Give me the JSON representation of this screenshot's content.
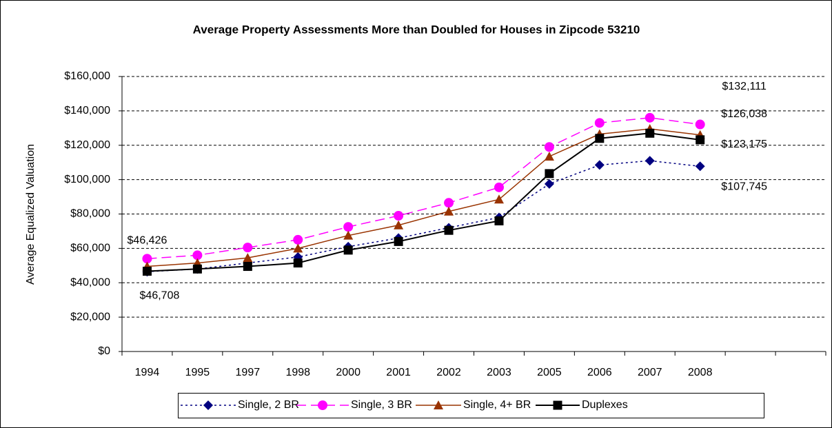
{
  "chart_data": {
    "type": "line",
    "title": "Average Property Assessments More than Doubled for Houses in Zipcode 53210",
    "y_label": "Average Equalized Valuation",
    "categories": [
      "1994",
      "1995",
      "1997",
      "1998",
      "2000",
      "2001",
      "2002",
      "2003",
      "2005",
      "2006",
      "2007",
      "2008",
      null,
      null
    ],
    "series": [
      {
        "name": "Single, 2 BR",
        "color": "#000080",
        "marker": "diamond",
        "dash": "dotted",
        "values": [
          46426,
          48000,
          51500,
          55000,
          61000,
          66000,
          72000,
          78000,
          97500,
          108500,
          111000,
          107745,
          null,
          null
        ],
        "value_labels": [
          "$46,426",
          null,
          null,
          null,
          null,
          null,
          null,
          null,
          null,
          null,
          null,
          "$107,745",
          null,
          null
        ]
      },
      {
        "name": "Single, 3 BR",
        "color": "#ff00ff",
        "marker": "circle",
        "dash": "dashed",
        "values": [
          54000,
          56000,
          60500,
          65000,
          72500,
          79000,
          86500,
          95500,
          119000,
          133000,
          136000,
          132111,
          null,
          null
        ],
        "value_labels": [
          null,
          null,
          null,
          null,
          null,
          null,
          null,
          null,
          null,
          null,
          null,
          "$132,111",
          null,
          null
        ]
      },
      {
        "name": "Single, 4+ BR",
        "color": "#993300",
        "marker": "triangle",
        "dash": "solid",
        "values": [
          49500,
          51500,
          54500,
          60000,
          67500,
          73500,
          81500,
          88500,
          113500,
          126500,
          129500,
          126038,
          null,
          null
        ],
        "value_labels": [
          null,
          null,
          null,
          null,
          null,
          null,
          null,
          null,
          null,
          null,
          null,
          "$126,038",
          null,
          null
        ]
      },
      {
        "name": "Duplexes",
        "color": "#000000",
        "marker": "square",
        "dash": "solid",
        "values": [
          46708,
          48000,
          49500,
          51500,
          59000,
          64000,
          70500,
          76000,
          103500,
          124000,
          127000,
          123175,
          null,
          null
        ],
        "value_labels": [
          "$46,708",
          null,
          null,
          null,
          null,
          null,
          null,
          null,
          null,
          null,
          null,
          "$123,175",
          null,
          null
        ]
      }
    ],
    "ylim": [
      0,
      160000
    ],
    "yticks": [
      {
        "value": 0,
        "label": "$0"
      },
      {
        "value": 20000,
        "label": "$20,000"
      },
      {
        "value": 40000,
        "label": "$40,000"
      },
      {
        "value": 60000,
        "label": "$60,000"
      },
      {
        "value": 80000,
        "label": "$80,000"
      },
      {
        "value": 100000,
        "label": "$100,000"
      },
      {
        "value": 120000,
        "label": "$120,000"
      },
      {
        "value": 140000,
        "label": "$140,000"
      },
      {
        "value": 160000,
        "label": "$160,000"
      }
    ],
    "grid": true,
    "legend": "bottom"
  }
}
